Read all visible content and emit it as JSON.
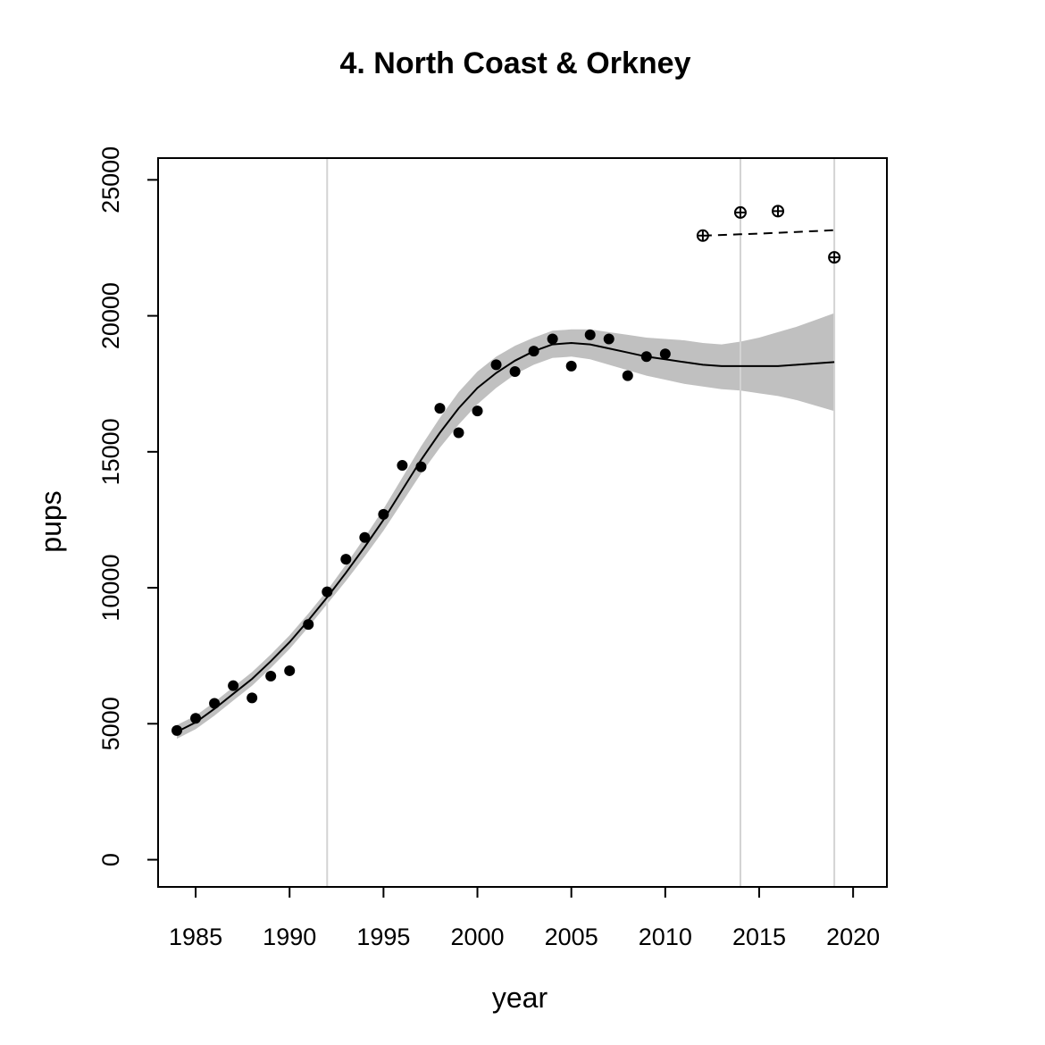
{
  "chart_data": {
    "type": "scatter",
    "title": "4. North Coast & Orkney",
    "xlabel": "year",
    "ylabel": "pups",
    "xlim": [
      1983,
      2021.8
    ],
    "ylim": [
      -1000,
      25800
    ],
    "xticks": [
      1985,
      1990,
      1995,
      2000,
      2005,
      2010,
      2015,
      2020
    ],
    "yticks": [
      0,
      5000,
      10000,
      15000,
      20000,
      25000
    ],
    "vertical_reference_lines": [
      1992,
      2014,
      2019
    ],
    "colors": {
      "band": "#c0c0c0",
      "reference": "#d3d3d3",
      "points": "#000000",
      "axis": "#000000"
    },
    "series": [
      {
        "name": "observed pup counts",
        "kind": "points",
        "x": [
          1984,
          1985,
          1986,
          1987,
          1988,
          1989,
          1990,
          1991,
          1992,
          1993,
          1994,
          1995,
          1996,
          1997,
          1998,
          1999,
          2000,
          2001,
          2002,
          2003,
          2004,
          2005,
          2006,
          2007,
          2008,
          2009,
          2010
        ],
        "y": [
          4750,
          5200,
          5750,
          6400,
          5950,
          6750,
          6950,
          8650,
          9850,
          11050,
          11850,
          12700,
          14500,
          14450,
          16600,
          15700,
          16500,
          18200,
          17950,
          18700,
          19150,
          18150,
          19300,
          19150,
          17800,
          18500,
          18600
        ]
      },
      {
        "name": "fitted trend",
        "kind": "line",
        "x": [
          1984,
          1985,
          1986,
          1987,
          1988,
          1989,
          1990,
          1991,
          1992,
          1993,
          1994,
          1995,
          1996,
          1997,
          1998,
          1999,
          2000,
          2001,
          2002,
          2003,
          2004,
          2005,
          2006,
          2007,
          2008,
          2009,
          2010,
          2011,
          2012,
          2013,
          2014,
          2015,
          2016,
          2017,
          2018,
          2019
        ],
        "y": [
          4700,
          5050,
          5550,
          6100,
          6650,
          7300,
          8000,
          8800,
          9650,
          10550,
          11500,
          12500,
          13600,
          14700,
          15700,
          16600,
          17350,
          17900,
          18350,
          18700,
          18950,
          19000,
          18950,
          18800,
          18650,
          18500,
          18400,
          18300,
          18200,
          18150,
          18150,
          18150,
          18150,
          18200,
          18250,
          18300
        ]
      },
      {
        "name": "confidence band",
        "kind": "band",
        "x": [
          1984,
          1985,
          1986,
          1987,
          1988,
          1989,
          1990,
          1991,
          1992,
          1993,
          1994,
          1995,
          1996,
          1997,
          1998,
          1999,
          2000,
          2001,
          2002,
          2003,
          2004,
          2005,
          2006,
          2007,
          2008,
          2009,
          2010,
          2011,
          2012,
          2013,
          2014,
          2015,
          2016,
          2017,
          2018,
          2019
        ],
        "lower": [
          4450,
          4800,
          5300,
          5850,
          6400,
          7050,
          7750,
          8550,
          9400,
          10250,
          11150,
          12100,
          13150,
          14200,
          15150,
          16000,
          16750,
          17350,
          17850,
          18200,
          18450,
          18500,
          18400,
          18200,
          18000,
          17800,
          17650,
          17500,
          17400,
          17300,
          17250,
          17150,
          17050,
          16900,
          16700,
          16500
        ],
        "upper": [
          4950,
          5300,
          5800,
          6350,
          6900,
          7550,
          8250,
          9050,
          9900,
          10850,
          11850,
          12900,
          14050,
          15200,
          16250,
          17200,
          17950,
          18500,
          18900,
          19200,
          19450,
          19500,
          19500,
          19400,
          19300,
          19200,
          19150,
          19100,
          19000,
          18950,
          19050,
          19200,
          19400,
          19600,
          19850,
          20100
        ]
      },
      {
        "name": "recent counts",
        "kind": "crossed-points",
        "x": [
          2012,
          2014,
          2016,
          2019
        ],
        "y": [
          22950,
          23800,
          23850,
          22150
        ]
      },
      {
        "name": "recent trend",
        "kind": "dashed-line",
        "x": [
          2012,
          2014,
          2016,
          2019
        ],
        "y": [
          22950,
          23000,
          23050,
          23150
        ]
      }
    ]
  }
}
